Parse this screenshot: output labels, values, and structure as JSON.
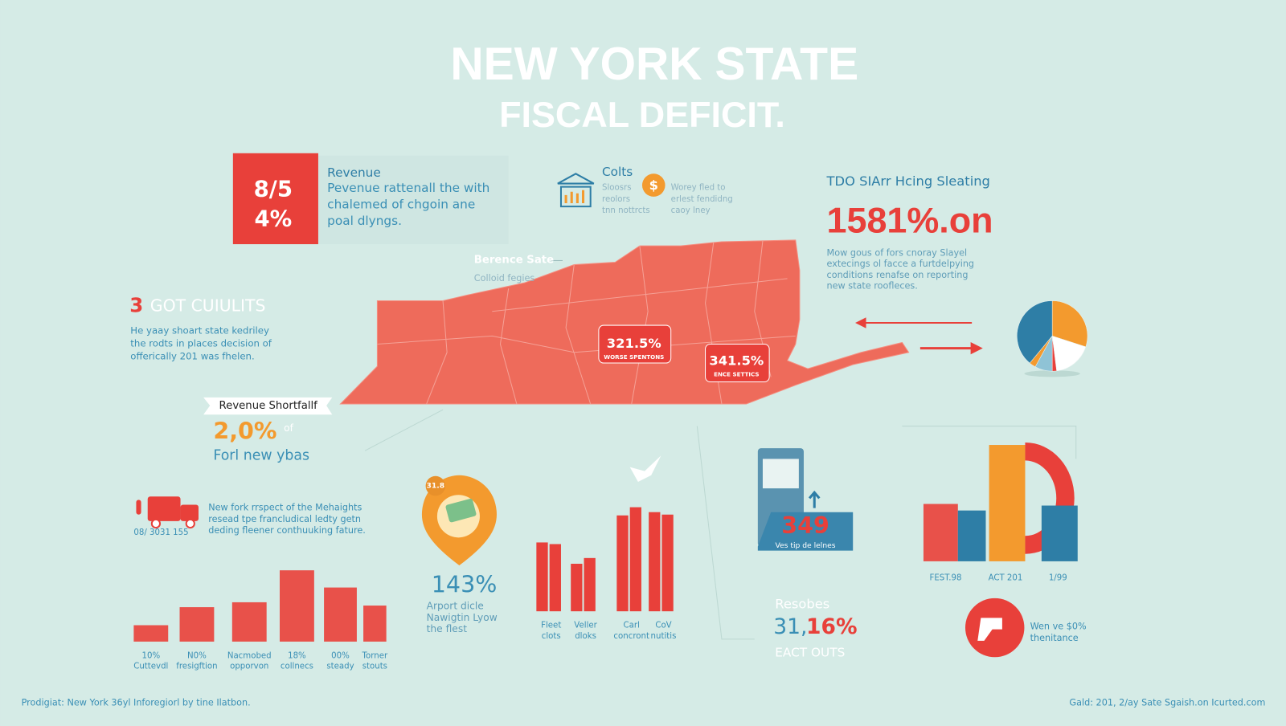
{
  "title": {
    "line1": "NEW YORK STATE",
    "line2": "FISCAL DEFICIT."
  },
  "revenue_box": {
    "value_top": "8/5",
    "value_bottom": "4%"
  },
  "revenue_card": {
    "heading": "Revenue",
    "body": [
      "Pevenue rattenall the with",
      "chalemed of chgoin ane",
      "poal dlyngs."
    ]
  },
  "costs": {
    "heading": "Colts",
    "notes_left": [
      "Sloosrs",
      "reolors",
      "tnn nottrcts"
    ],
    "notes_right": [
      "Worey fled to",
      "erlest fendidng",
      "caoy lney"
    ]
  },
  "deficit": {
    "heading": "TDO SIArr Hcing Sleating",
    "value": "1581%.on",
    "body": [
      "Mow gous of fors cnoray Slayel",
      "extecings ol facce a furtdelpying",
      "conditions renafse on reporting",
      "new state roofleces."
    ]
  },
  "map": {
    "label": "Berence Sate",
    "sublabel": "Colloid fegies",
    "badges": [
      {
        "value": "321.5%",
        "caption": "WORSE SPENTONS"
      },
      {
        "value": "341.5%",
        "caption": "ENCE SETTICS"
      }
    ]
  },
  "cuts": {
    "number": "3",
    "heading": "GOT CUIULITS",
    "body": [
      "He yaay shoart state kedriley",
      "the rodts in places decision of",
      "offerically 201 was fhelen."
    ]
  },
  "shortfall": {
    "label": "Revenue Shortfallf",
    "value": "2,0%",
    "unit": "of",
    "caption": "Forl new ybas"
  },
  "truck_note": {
    "date": "08/ 3031 155",
    "body": [
      "New fork rrspect of the Mehaights",
      "resead tpe francludical ledty getn",
      "deding fleener conthuuking fature."
    ]
  },
  "left_bars": {
    "values": [
      20,
      42,
      48,
      87,
      66,
      44
    ],
    "labels": [
      [
        "10%",
        "Cuttevdl"
      ],
      [
        "N0%",
        "fresigftion"
      ],
      [
        "Nacmobed",
        "opporvon"
      ],
      [
        "18%",
        "collnecs"
      ],
      [
        "00%",
        "steady"
      ],
      [
        "Torner",
        "stouts"
      ]
    ]
  },
  "pin": {
    "tag": "31.8",
    "value": "143%",
    "body": [
      "Arport dicle",
      "Nawigtin Lyow",
      "the flest"
    ]
  },
  "middle_bars": {
    "series": [
      {
        "values": [
          84,
          58,
          117,
          121
        ]
      },
      {
        "values": [
          82,
          65,
          127,
          118
        ]
      }
    ],
    "labels": [
      [
        "Fleet",
        "clots"
      ],
      [
        "Veller",
        "dloks"
      ],
      [
        "Carl",
        "concront"
      ],
      [
        "CoV",
        "nutitis"
      ]
    ]
  },
  "phone": {
    "value": "349",
    "caption": "Ves tip de lelnes"
  },
  "reserves": {
    "heading": "Resobes",
    "value_a": "31,",
    "value_b": "16%",
    "caption": "EACT OUTS"
  },
  "right_bars": {
    "bars": [
      {
        "value": 70,
        "color": "#e8514a"
      },
      {
        "value": 62,
        "color": "#2e7ea6"
      },
      {
        "value": 142,
        "color": "#f39a2e"
      },
      {
        "value": 68,
        "color": "#2e7ea6"
      }
    ],
    "labels": [
      "FEST.98",
      "ACT 201",
      "1/99"
    ]
  },
  "pie": {
    "slices": [
      {
        "value": 30,
        "color": "#f39a2e"
      },
      {
        "value": 18,
        "color": "#ffffff"
      },
      {
        "value": 2,
        "color": "#e8403a"
      },
      {
        "value": 8,
        "color": "#8fc3d6"
      },
      {
        "value": 3,
        "color": "#f39a2e"
      },
      {
        "value": 39,
        "color": "#2e7ea6"
      }
    ]
  },
  "legend_note": {
    "body": [
      "Wen ve $0%",
      "thenitance"
    ]
  },
  "footer": {
    "left": "Prodigiat: New York 36yl Inforegiorl by tine Ilatbon.",
    "right": "Gald: 201, 2/ay Sate Sgaish.on Icurted.com"
  }
}
